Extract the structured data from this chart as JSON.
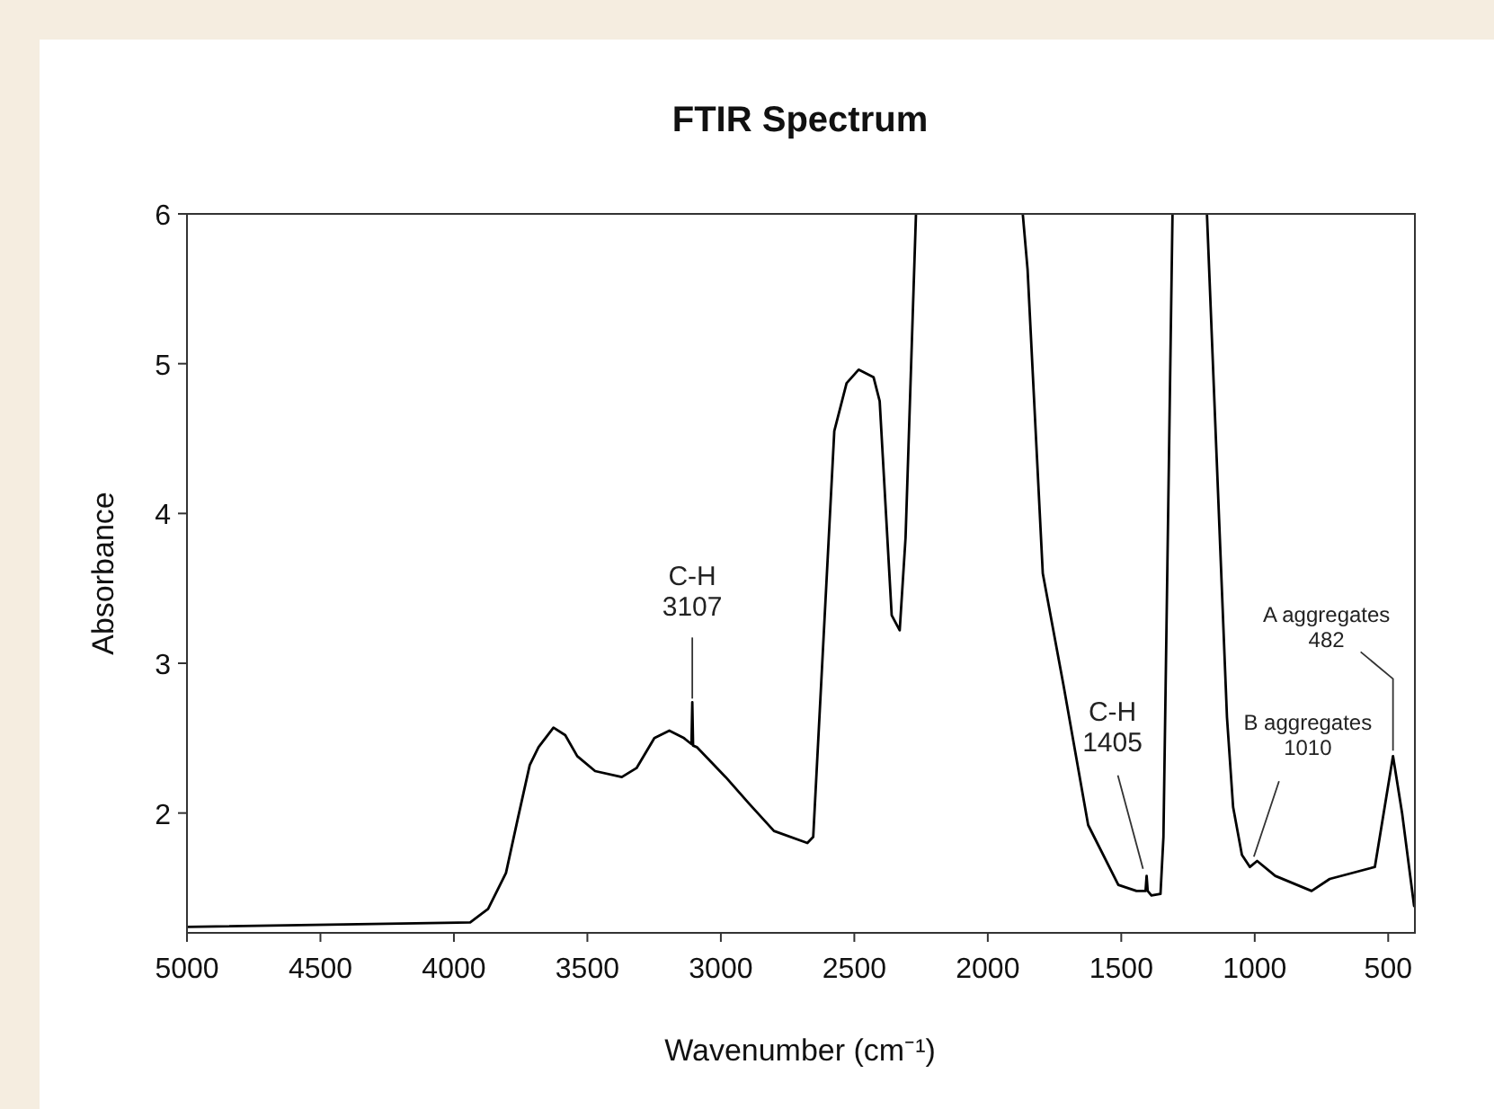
{
  "chart_data": {
    "type": "line",
    "title": "FTIR Spectrum",
    "xlabel": "Wavenumber (cm⁻¹)",
    "ylabel": "Absorbance",
    "xlim": [
      5000,
      400
    ],
    "ylim": [
      1.2,
      6
    ],
    "xticks": [
      5000,
      4500,
      4000,
      3500,
      3000,
      2500,
      2000,
      1500,
      1000,
      500
    ],
    "yticks": [
      2,
      3,
      4,
      5,
      6
    ],
    "grid": false,
    "marker": "none",
    "line_style": "solid",
    "series": [
      {
        "color": "#000000",
        "x": [
          5000,
          3939,
          3872,
          3805,
          3761,
          3716,
          3683,
          3627,
          3583,
          3538,
          3471,
          3371,
          3316,
          3249,
          3193,
          3138,
          3110,
          3107,
          3104,
          3090,
          2982,
          2893,
          2801,
          2676,
          2654,
          2575,
          2529,
          2484,
          2428,
          2405,
          2360,
          2330,
          2308,
          2269,
          2100,
          1869,
          1851,
          1794,
          1715,
          1624,
          1511,
          1443,
          1409,
          1405,
          1401,
          1387,
          1353,
          1342,
          1308,
          1250,
          1179,
          1104,
          1081,
          1048,
          1018,
          991,
          923,
          787,
          719,
          550,
          482,
          448,
          403
        ],
        "values": [
          1.24,
          1.27,
          1.36,
          1.6,
          1.96,
          2.32,
          2.44,
          2.57,
          2.52,
          2.38,
          2.28,
          2.24,
          2.3,
          2.5,
          2.55,
          2.5,
          2.46,
          2.74,
          2.45,
          2.44,
          2.24,
          2.06,
          1.88,
          1.8,
          1.84,
          4.55,
          4.87,
          4.96,
          4.91,
          4.75,
          3.32,
          3.22,
          3.84,
          6,
          null,
          6,
          5.63,
          3.6,
          2.84,
          1.92,
          1.52,
          1.48,
          1.48,
          1.58,
          1.48,
          1.45,
          1.46,
          1.84,
          6,
          null,
          6,
          2.64,
          2.04,
          1.72,
          1.64,
          1.68,
          1.58,
          1.48,
          1.56,
          1.64,
          2.38,
          2.0,
          1.38
        ]
      }
    ],
    "annotations": [
      {
        "text": "C-H\n3107",
        "x": 3107,
        "y": 2.74
      },
      {
        "text": "C-H\n1405",
        "x": 1405,
        "y": 1.58
      },
      {
        "text": "B aggregates\n1010",
        "x": 1010,
        "y": 1.66
      },
      {
        "text": "A aggregates\n482",
        "x": 482,
        "y": 2.38
      }
    ]
  }
}
